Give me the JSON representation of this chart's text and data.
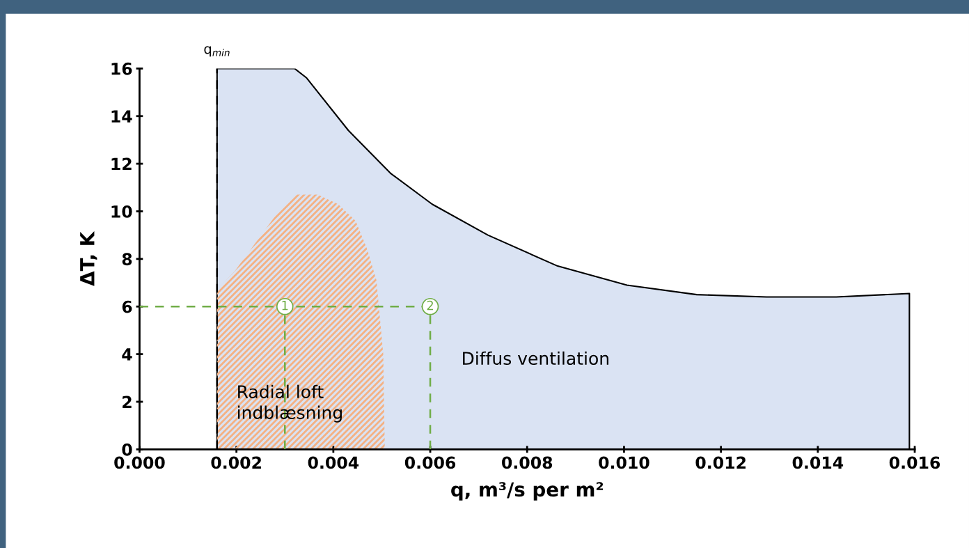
{
  "chart_data": {
    "type": "area",
    "xlabel": "q, m³/s per m²",
    "ylabel": "ΔT, K",
    "xlim": [
      0,
      0.016
    ],
    "ylim": [
      0,
      16
    ],
    "xticks": [
      {
        "value": 0,
        "label": "0.000"
      },
      {
        "value": 0.002,
        "label": "0.002"
      },
      {
        "value": 0.004,
        "label": "0.004"
      },
      {
        "value": 0.006,
        "label": "0.006"
      },
      {
        "value": 0.008,
        "label": "0.008"
      },
      {
        "value": 0.01,
        "label": "0.010"
      },
      {
        "value": 0.012,
        "label": "0.012"
      },
      {
        "value": 0.014,
        "label": "0.014"
      },
      {
        "value": 0.016,
        "label": "0.016"
      }
    ],
    "yticks": [
      0,
      2,
      4,
      6,
      8,
      10,
      12,
      14,
      16
    ],
    "grid": false,
    "legend": false,
    "series": [
      {
        "color": "#dae3f3",
        "x": [
          0.0016,
          0.0032,
          0.00345,
          0.00431,
          0.00518,
          0.00604,
          0.00719,
          0.00863,
          0.01006,
          0.0115,
          0.01294,
          0.01438,
          0.01589
        ],
        "values": [
          16,
          16,
          15.6,
          13.4,
          11.6,
          10.3,
          9.0,
          7.7,
          6.9,
          6.5,
          6.4,
          6.4,
          6.55
        ]
      },
      {
        "color": "#f4b183",
        "x": [
          0.0016,
          0.00197,
          0.0028,
          0.00324,
          0.00368,
          0.0041,
          0.00446,
          0.0047,
          0.00489,
          0.00503,
          0.00506
        ],
        "values": [
          6.7,
          7.5,
          9.8,
          10.7,
          10.7,
          10.3,
          9.6,
          8.4,
          7.1,
          4.0,
          0.3
        ]
      },
      {
        "type": "line",
        "color": "#70ad47",
        "line_style": "dashed",
        "x": [
          0,
          0.006
        ],
        "values": [
          6,
          6
        ]
      },
      {
        "type": "line",
        "color": "#70ad47",
        "line_style": "dashed",
        "x": [
          0.003,
          0.003
        ],
        "values": [
          0,
          6
        ]
      },
      {
        "type": "line",
        "color": "#70ad47",
        "line_style": "dashed",
        "x": [
          0.006,
          0.006
        ],
        "values": [
          0,
          6
        ]
      }
    ],
    "ref_lines": [
      {
        "axis": "x",
        "value": 0.0016,
        "label": "q$_{min}$",
        "color": "#000000",
        "line_style": "dashed"
      }
    ],
    "annotations": [
      {
        "text": "1",
        "x": 0.003,
        "y": 6
      },
      {
        "text": "2",
        "x": 0.006,
        "y": 6
      },
      "Radial loft\nindblæsning",
      "Diffus ventilation"
    ]
  }
}
